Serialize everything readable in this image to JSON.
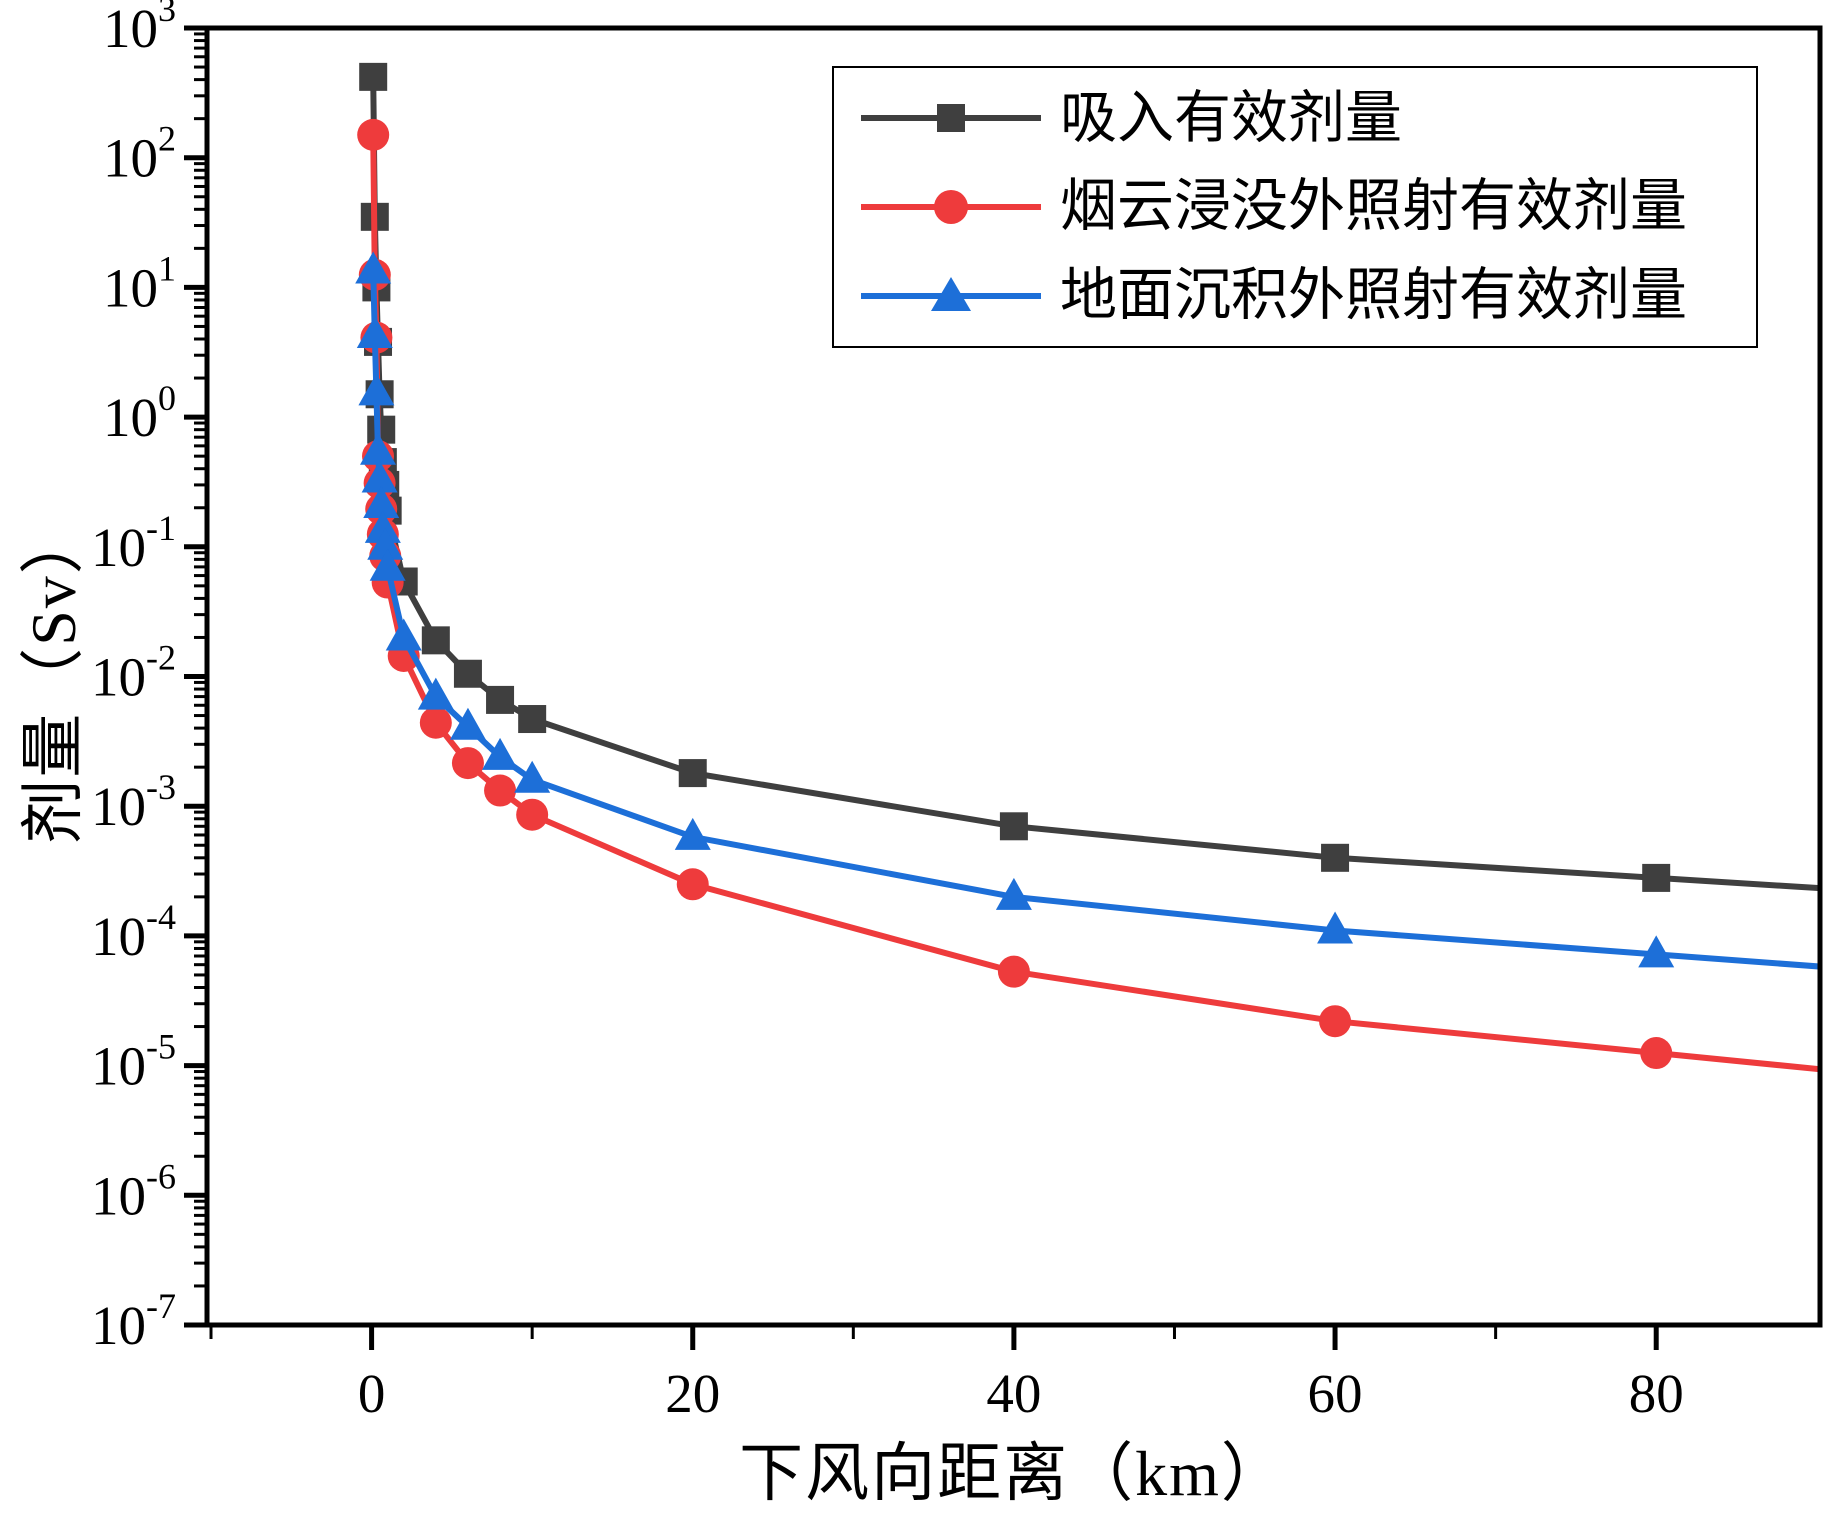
{
  "figure": {
    "background": "#ffffff",
    "frame_color": "#000000"
  },
  "chart_data": {
    "type": "line",
    "title": "",
    "xlabel": "下风向距离（km）",
    "ylabel": "剂量（Sv）",
    "x_ticks": [
      0,
      20,
      40,
      60,
      80
    ],
    "x_minor_ticks": [
      -10,
      10,
      30,
      50,
      70
    ],
    "x_range": [
      -10.25,
      90.2
    ],
    "y_scale": "log",
    "y_tick_exponents": [
      3,
      2,
      1,
      0,
      -1,
      -2,
      -3,
      -4,
      -5,
      -6,
      -7
    ],
    "y_range_exponents": [
      -7,
      3
    ],
    "grid": false,
    "legend_position": "top-right",
    "x": [
      0.1,
      0.2,
      0.3,
      0.4,
      0.5,
      0.6,
      0.7,
      0.85,
      1,
      2,
      4,
      6,
      8,
      10,
      20,
      40,
      60,
      80
    ],
    "series": [
      {
        "name": "吸入有效剂量",
        "marker": "square",
        "color": "#3f3f3f",
        "values": [
          420,
          35,
          10,
          3.8,
          1.5,
          0.8,
          0.45,
          0.3,
          0.19,
          0.054,
          0.019,
          0.0105,
          0.0066,
          0.0047,
          0.0018,
          0.0007,
          0.0004,
          0.00028
        ]
      },
      {
        "name": "烟云浸没外照射有效剂量",
        "marker": "circle",
        "color": "#ee3b3c",
        "values": [
          150,
          12.5,
          4.1,
          0.5,
          0.31,
          0.195,
          0.125,
          0.085,
          0.053,
          0.0144,
          0.0044,
          0.00215,
          0.00132,
          0.00086,
          0.00025,
          5.3e-05,
          2.2e-05,
          1.25e-05
        ]
      },
      {
        "name": "地面沉积外照射有效剂量",
        "marker": "triangle",
        "color": "#1d6fd8",
        "values": [
          13.5,
          4.3,
          1.55,
          0.54,
          0.33,
          0.21,
          0.135,
          0.1,
          0.069,
          0.02,
          0.007,
          0.0041,
          0.0024,
          0.0016,
          0.00058,
          0.0002,
          0.00011,
          7.2e-05
        ]
      }
    ]
  }
}
